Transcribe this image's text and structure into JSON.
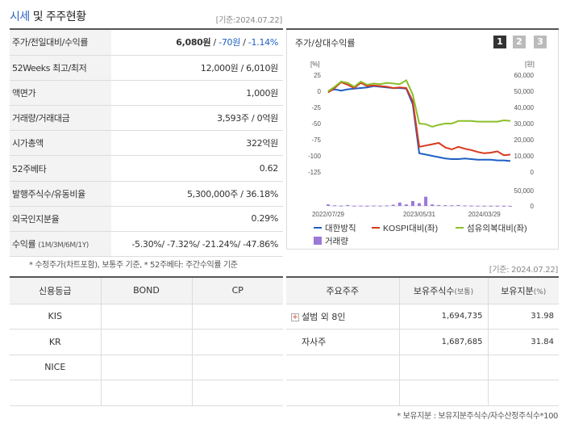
{
  "header": {
    "title_highlight": "시세",
    "title_rest": "및 주주현황",
    "basedate": "[기준:2024.07.22]"
  },
  "quote": {
    "rows": [
      {
        "label": "주가/전일대비/수익률",
        "price": "6,080원",
        "sep1": " / ",
        "change": "-70원",
        "sep2": " / ",
        "rate": "-1.14%"
      },
      {
        "label": "52Weeks 최고/최저",
        "value": "12,000원 / 6,010원"
      },
      {
        "label": "액면가",
        "value": "1,000원"
      },
      {
        "label": "거래량/거래대금",
        "value": "3,593주 / 0억원"
      },
      {
        "label": "시가총액",
        "value": "322억원"
      },
      {
        "label": "52주베타",
        "value": "0.62"
      },
      {
        "label": "발행주식수/유동비율",
        "value": "5,300,000주 / 36.18%"
      },
      {
        "label": "외국인지분율",
        "value": "0.29%"
      },
      {
        "label": "수익률",
        "label_small": "(1M/3M/6M/1Y)",
        "value": "-5.30%/ -7.32%/ -21.24%/ -47.86%"
      }
    ],
    "note": "* 수정주가(차트포함), 보통주 기준, * 52주베타: 주간수익률 기준"
  },
  "chart_panel": {
    "title": "주가/상대수익률",
    "tabs": [
      "1",
      "2",
      "3"
    ],
    "active_tab": "1"
  },
  "chart_data": {
    "type": "line",
    "left_axis_unit": "[%]",
    "right_axis_unit": "[원]",
    "left_ticks": [
      "25",
      "0",
      "-25",
      "-50",
      "-75",
      "-100",
      "-125"
    ],
    "right_ticks": [
      "60,000",
      "50,000",
      "40,000",
      "30,000",
      "20,000",
      "10,000",
      "0"
    ],
    "volume_ticks": [
      "50,000",
      "0"
    ],
    "x_labels": [
      "2022/07/29",
      "2023/05/31",
      "2024/03/29"
    ],
    "ylim_left": [
      -125,
      25
    ],
    "ylim_right": [
      0,
      60000
    ],
    "series": [
      {
        "name": "대한방직",
        "color": "#1f5fc4",
        "values": [
          0,
          3,
          1,
          3,
          4,
          5,
          6,
          8,
          7,
          6,
          5,
          5,
          4,
          -20,
          -96,
          -98,
          -100,
          -102,
          -104,
          -105,
          -105,
          -104,
          -105,
          -106,
          -106,
          -106,
          -107,
          -107,
          -108
        ]
      },
      {
        "name": "KOSPI대비(좌)",
        "color": "#d9381e",
        "values": [
          -2,
          5,
          14,
          10,
          5,
          13,
          8,
          9,
          8,
          7,
          5,
          6,
          5,
          -15,
          -86,
          -84,
          -82,
          -80,
          -87,
          -90,
          -86,
          -89,
          -91,
          -94,
          -96,
          -95,
          -93,
          -99,
          -98
        ]
      },
      {
        "name": "섬유의복대비(좌)",
        "color": "#8bbf2a",
        "values": [
          0,
          7,
          15,
          13,
          7,
          15,
          10,
          12,
          11,
          13,
          12,
          11,
          17,
          -5,
          -50,
          -51,
          -55,
          -52,
          -50,
          -50,
          -46,
          -46,
          -46,
          -47,
          -47,
          -47,
          -47,
          -45,
          -46
        ]
      },
      {
        "name": "거래량",
        "color": "#9b79d8",
        "values": [
          5000,
          2000,
          1000,
          3000,
          800,
          1000,
          600,
          1200,
          900,
          1500,
          4000,
          11000,
          5000,
          16000,
          9000,
          30000,
          5000,
          3000,
          2500,
          2000,
          3000,
          1500,
          1000,
          800,
          700,
          600,
          500,
          400,
          300
        ]
      }
    ]
  },
  "credit": {
    "headers": [
      "신용등급",
      "BOND",
      "CP"
    ],
    "rows": [
      [
        "KIS",
        "",
        ""
      ],
      [
        "KR",
        "",
        ""
      ],
      [
        "NICE",
        "",
        ""
      ],
      [
        "",
        "",
        ""
      ]
    ]
  },
  "holders": {
    "basedate": "[기준: 2024.07.22]",
    "headers": [
      "주요주주",
      "보유주식수",
      "(보통)",
      "보유지분",
      "(%)"
    ],
    "rows": [
      {
        "name": "설범 외 8인",
        "shares": "1,694,735",
        "pct": "31.98",
        "expandable": true
      },
      {
        "name": "자사주",
        "shares": "1,687,685",
        "pct": "31.84",
        "expandable": false
      }
    ],
    "note": "* 보유지분 : 보유지분주식수/자수산정주식수*100"
  }
}
